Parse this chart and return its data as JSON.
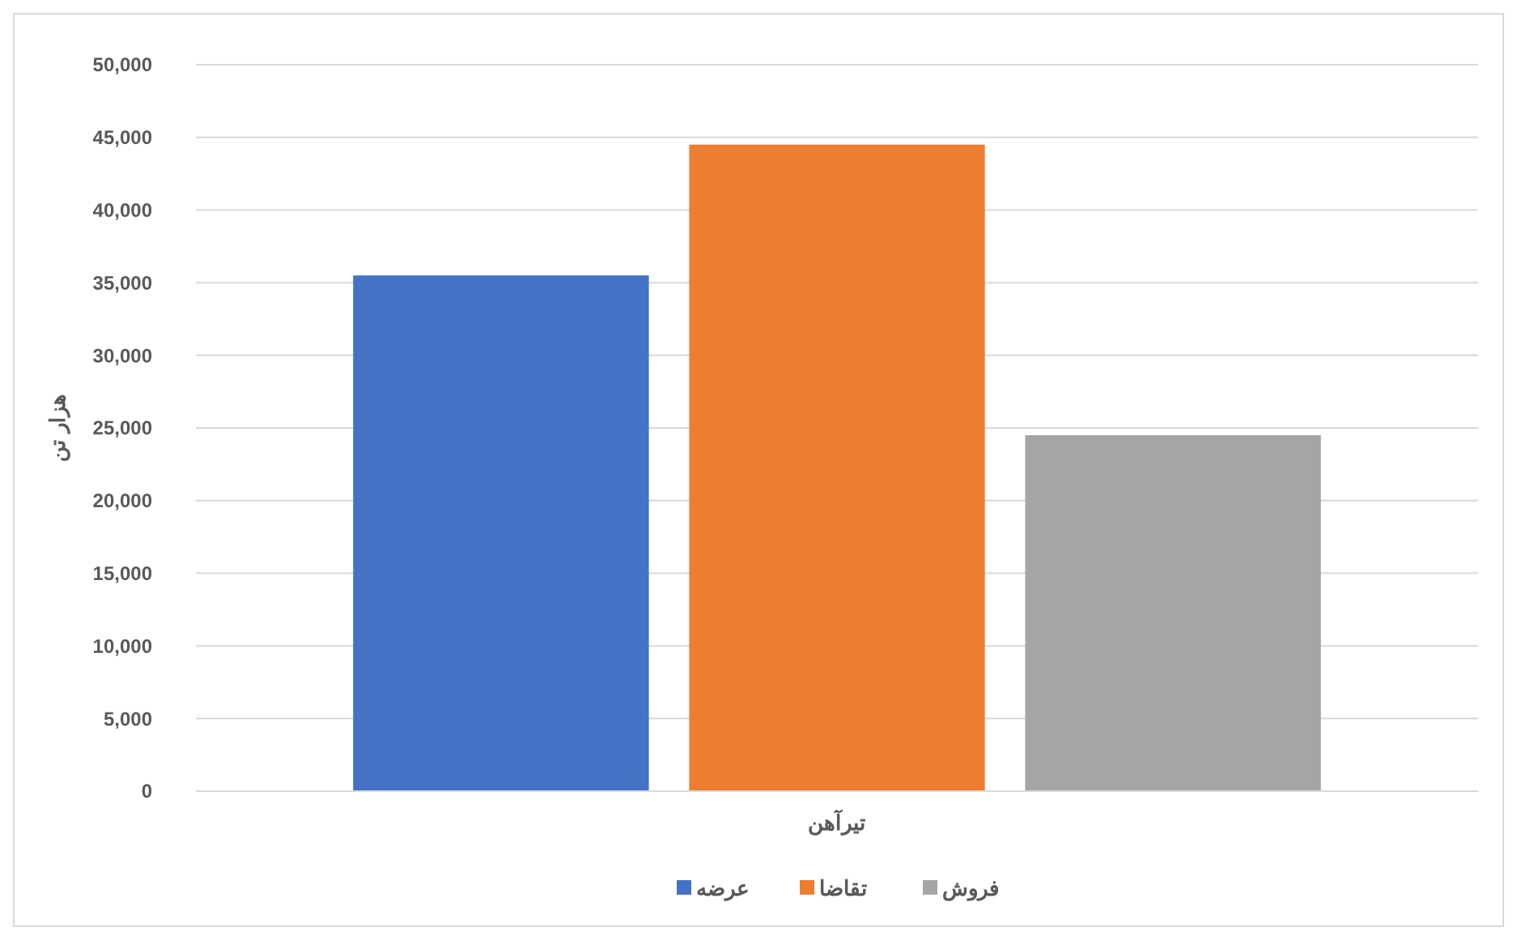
{
  "chart_data": {
    "type": "bar",
    "ylabel": "هزار تن",
    "categories": [
      "تیرآهن"
    ],
    "series": [
      {
        "name": "عرضه",
        "color": "#4472c4",
        "values": [
          35500
        ]
      },
      {
        "name": "تقاضا",
        "color": "#ed7d31",
        "values": [
          44500
        ]
      },
      {
        "name": "فروش",
        "color": "#a5a5a5",
        "values": [
          24500
        ]
      }
    ],
    "ylim": [
      0,
      50000
    ],
    "yticks": [
      {
        "value": 0,
        "label": "0"
      },
      {
        "value": 5000,
        "label": "5,000"
      },
      {
        "value": 10000,
        "label": "10,000"
      },
      {
        "value": 15000,
        "label": "15,000"
      },
      {
        "value": 20000,
        "label": "20,000"
      },
      {
        "value": 25000,
        "label": "25,000"
      },
      {
        "value": 30000,
        "label": "30,000"
      },
      {
        "value": 35000,
        "label": "35,000"
      },
      {
        "value": 40000,
        "label": "40,000"
      },
      {
        "value": 45000,
        "label": "45,000"
      },
      {
        "value": 50000,
        "label": "50,000"
      }
    ],
    "grid": "y",
    "legend": "bottom"
  }
}
